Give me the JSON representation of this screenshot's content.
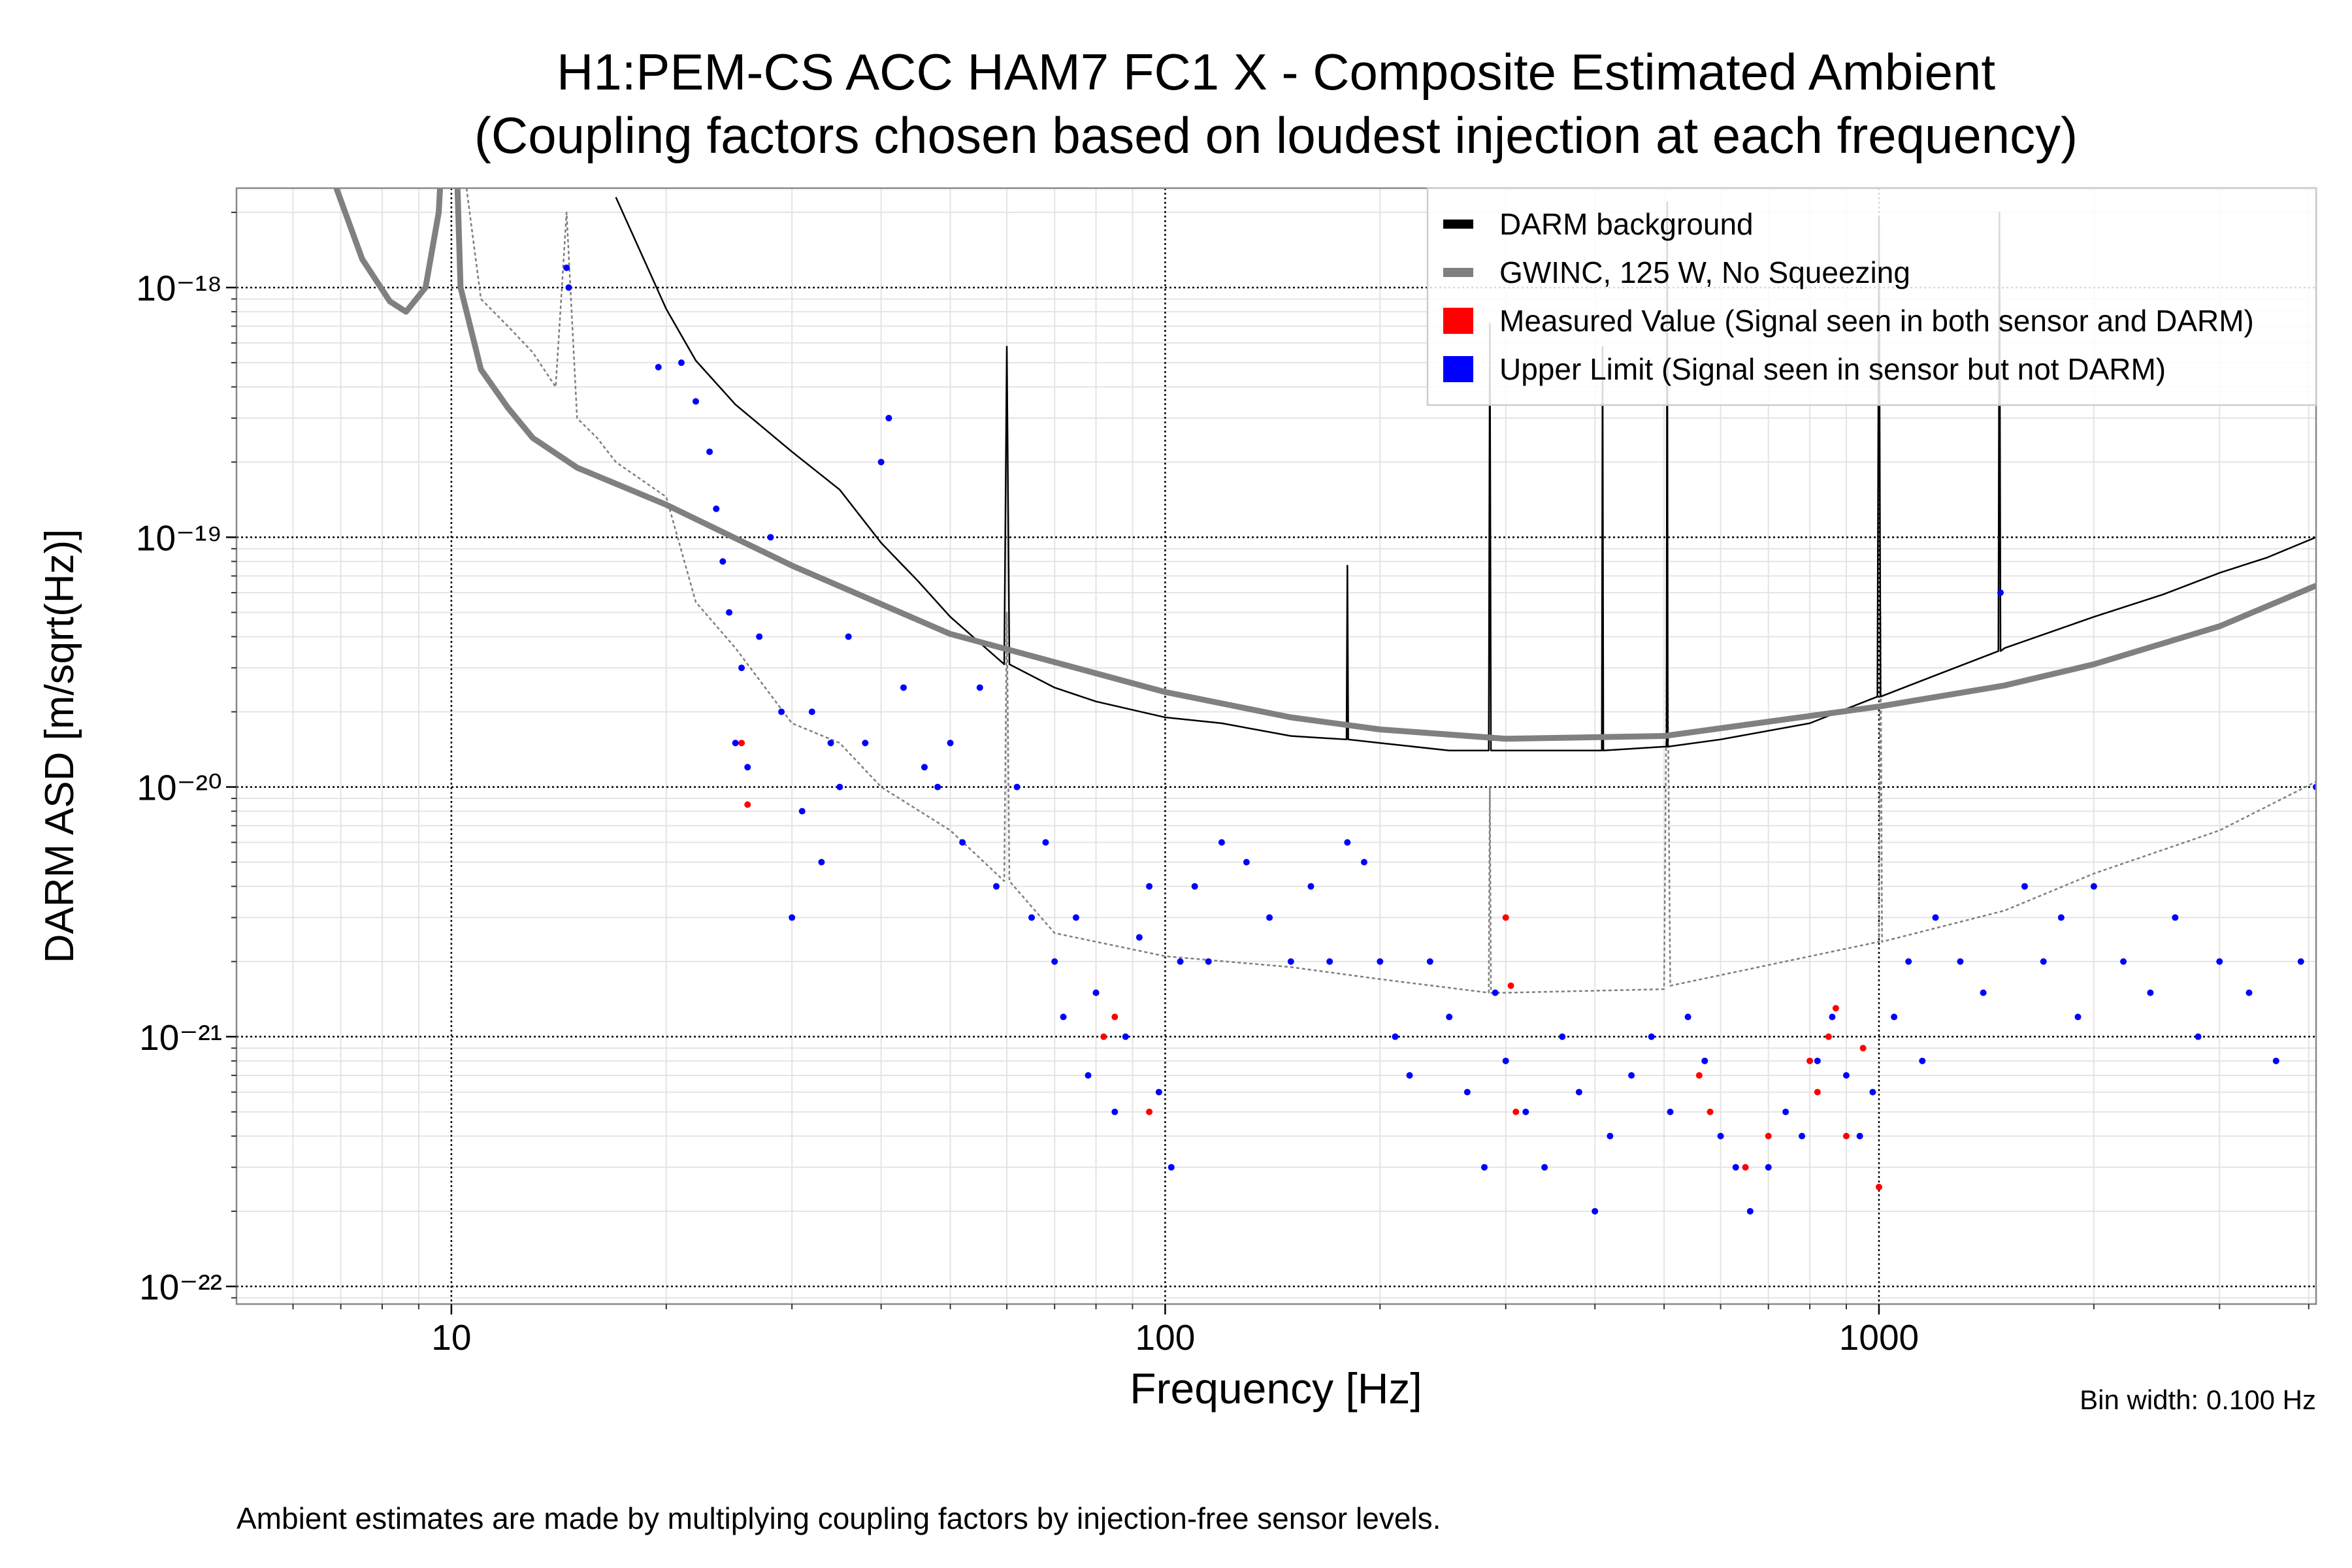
{
  "chart_data": {
    "type": "line",
    "title": "H1:PEM-CS ACC HAM7 FC1 X - Composite Estimated Ambient",
    "subtitle": "(Coupling factors chosen based on loudest injection at each frequency)",
    "x_label": "Frequency [Hz]",
    "y_label": "DARM ASD [m/sqrt(Hz)]",
    "bin_width_note": "Bin width: 0.100 Hz",
    "footnote": "Ambient estimates are made by multiplying coupling factors by injection-free sensor levels.",
    "xscale": "log",
    "yscale": "log",
    "xlim": [
      5,
      4096
    ],
    "ylim": [
      8.5e-23,
      2.5e-18
    ],
    "xticks": [
      10,
      100,
      1000
    ],
    "yticks": [
      {
        "value": 1e-22,
        "label": "10⁻²²"
      },
      {
        "value": 1e-21,
        "label": "10⁻²¹"
      },
      {
        "value": 1e-20,
        "label": "10⁻²⁰"
      },
      {
        "value": 1e-19,
        "label": "10⁻¹⁹"
      },
      {
        "value": 1e-18,
        "label": "10⁻¹⁸"
      }
    ],
    "grid": true,
    "legend": "upper right",
    "series": [
      {
        "type": "line",
        "style": "dashed",
        "color": "#7f7f7f",
        "x": [
          10.5,
          11,
          12,
          13,
          14,
          14.5,
          15,
          16,
          17,
          20,
          22,
          25,
          30,
          35,
          40,
          50,
          59.5,
          60,
          60.5,
          70,
          100,
          150,
          200,
          284,
          285,
          286,
          300,
          500,
          505,
          510,
          1000,
          1005,
          1010,
          1500,
          2000,
          3000,
          4096
        ],
        "values": [
          2.5e-18,
          9e-19,
          7e-19,
          5.5e-19,
          4e-19,
          2e-18,
          3e-19,
          2.5e-19,
          2e-19,
          1.45e-19,
          5.5e-20,
          3.6e-20,
          1.8e-20,
          1.5e-20,
          1e-20,
          6.7e-21,
          4.2e-21,
          5e-20,
          4.2e-21,
          2.6e-21,
          2.1e-21,
          1.9e-21,
          1.7e-21,
          1.5e-21,
          1e-20,
          1.5e-21,
          1.5e-21,
          1.55e-21,
          5e-20,
          1.6e-21,
          2.4e-21,
          5e-20,
          2.4e-21,
          3.2e-21,
          4.5e-21,
          6.7e-21,
          1.05e-20
        ]
      },
      {
        "type": "line",
        "name": "DARM background",
        "color": "#000000",
        "x": [
          17,
          20,
          22,
          25,
          30,
          35,
          40,
          45,
          50,
          59.5,
          60,
          60.5,
          70,
          80,
          100,
          120,
          150,
          179.5,
          180,
          180.5,
          200,
          250,
          284,
          285,
          286,
          300,
          400,
          409,
          410,
          411,
          500,
          504,
          505,
          506,
          600,
          800,
          995,
          1000,
          1005,
          1200,
          1470,
          1475,
          1480,
          1500,
          2000,
          2500,
          3000,
          3500,
          4096
        ],
        "values": [
          2.3e-18,
          8.2e-19,
          5.1e-19,
          3.4e-19,
          2.2e-19,
          1.55e-19,
          9.5e-20,
          6.7e-20,
          4.8e-20,
          3.1e-20,
          5.8e-19,
          3.1e-20,
          2.5e-20,
          2.2e-20,
          1.9e-20,
          1.8e-20,
          1.6e-20,
          1.55e-20,
          7.7e-20,
          1.55e-20,
          1.5e-20,
          1.4e-20,
          1.4e-20,
          7.2e-19,
          1.4e-20,
          1.4e-20,
          1.4e-20,
          1.4e-20,
          5.8e-19,
          1.4e-20,
          1.45e-20,
          1.45e-20,
          2.2e-18,
          1.45e-20,
          1.55e-20,
          1.8e-20,
          2.3e-20,
          1.9e-18,
          2.3e-20,
          2.8e-20,
          3.5e-20,
          2e-18,
          3.5e-20,
          3.6e-20,
          4.8e-20,
          5.9e-20,
          7.2e-20,
          8.3e-20,
          1e-19
        ]
      },
      {
        "type": "line",
        "style": "thick",
        "name": "GWINC, 125 W, No Squeezing",
        "color": "#808080",
        "x": [
          6.9,
          7.5,
          8.2,
          8.64,
          9.2,
          9.6,
          9.9,
          10.05,
          10.3,
          11,
          12,
          13,
          15,
          20,
          30,
          50,
          100,
          150,
          200,
          300,
          500,
          1000,
          1500,
          2000,
          3000,
          4096
        ],
        "values": [
          2.5e-18,
          1.3e-18,
          8.8e-19,
          8e-19,
          1e-18,
          2e-18,
          1e-17,
          1e-17,
          1e-18,
          4.7e-19,
          3.3e-19,
          2.5e-19,
          1.9e-19,
          1.35e-19,
          7.7e-20,
          4.1e-20,
          2.4e-20,
          1.9e-20,
          1.7e-20,
          1.56e-20,
          1.6e-20,
          2.1e-20,
          2.55e-20,
          3.1e-20,
          4.4e-20,
          6.4e-20
        ]
      },
      {
        "type": "scatter",
        "name": "Measured Value (Signal seen in both sensor and DARM)",
        "color": "#ff0000",
        "x": [
          25.5,
          26,
          80,
          82,
          85,
          95,
          300,
          305,
          310,
          560,
          580,
          650,
          700,
          800,
          820,
          850,
          870,
          900,
          950,
          1000
        ],
        "values": [
          1.5e-20,
          8.5e-21,
          1.5e-21,
          1e-21,
          1.2e-21,
          5e-22,
          3e-21,
          1.6e-21,
          5e-22,
          7e-22,
          5e-22,
          3e-22,
          4e-22,
          8e-22,
          6e-22,
          1e-21,
          1.3e-21,
          4e-22,
          9e-22,
          2.5e-22
        ]
      },
      {
        "type": "scatter",
        "name": "Upper Limit (Signal seen in sensor but not DARM)",
        "color": "#0000ff",
        "x": [
          14.5,
          14.6,
          19.5,
          21,
          22,
          23,
          23.5,
          24,
          24.5,
          25,
          25.5,
          26,
          27,
          28,
          29,
          30,
          31,
          32,
          33,
          34,
          35,
          36,
          38,
          40,
          41,
          43,
          46,
          48,
          50,
          52,
          55,
          58,
          62,
          65,
          68,
          70,
          72,
          75,
          78,
          80,
          85,
          88,
          92,
          95,
          98,
          102,
          105,
          110,
          115,
          120,
          130,
          140,
          150,
          160,
          170,
          180,
          190,
          200,
          210,
          220,
          235,
          250,
          265,
          280,
          290,
          300,
          320,
          340,
          360,
          380,
          400,
          420,
          450,
          480,
          510,
          540,
          570,
          600,
          630,
          660,
          700,
          740,
          780,
          820,
          860,
          900,
          940,
          980,
          1050,
          1100,
          1150,
          1200,
          1300,
          1400,
          1480,
          1600,
          1700,
          1800,
          1900,
          2000,
          2200,
          2400,
          2600,
          2800,
          3000,
          3300,
          3600,
          3900,
          4096
        ],
        "values": [
          1.2e-18,
          1e-18,
          4.8e-19,
          5e-19,
          3.5e-19,
          2.2e-19,
          1.3e-19,
          8e-20,
          5e-20,
          1.5e-20,
          3e-20,
          1.2e-20,
          4e-20,
          1e-19,
          2e-20,
          3e-21,
          8e-21,
          2e-20,
          5e-21,
          1.5e-20,
          1e-20,
          4e-20,
          1.5e-20,
          2e-19,
          3e-19,
          2.5e-20,
          1.2e-20,
          1e-20,
          1.5e-20,
          6e-21,
          2.5e-20,
          4e-21,
          1e-20,
          3e-21,
          6e-21,
          2e-21,
          1.2e-21,
          3e-21,
          7e-22,
          1.5e-21,
          5e-22,
          1e-21,
          2.5e-21,
          4e-21,
          6e-22,
          3e-22,
          2e-21,
          4e-21,
          2e-21,
          6e-21,
          5e-21,
          3e-21,
          2e-21,
          4e-21,
          2e-21,
          6e-21,
          5e-21,
          2e-21,
          1e-21,
          7e-22,
          2e-21,
          1.2e-21,
          6e-22,
          3e-22,
          1.5e-21,
          8e-22,
          5e-22,
          3e-22,
          1e-21,
          6e-22,
          2e-22,
          4e-22,
          7e-22,
          1e-21,
          5e-22,
          1.2e-21,
          8e-22,
          4e-22,
          3e-22,
          2e-22,
          3e-22,
          5e-22,
          4e-22,
          8e-22,
          1.2e-21,
          7e-22,
          4e-22,
          6e-22,
          1.2e-21,
          2e-21,
          8e-22,
          3e-21,
          2e-21,
          1.5e-21,
          6e-20,
          4e-21,
          2e-21,
          3e-21,
          1.2e-21,
          4e-21,
          2e-21,
          1.5e-21,
          3e-21,
          1e-21,
          2e-21,
          1.5e-21,
          8e-22,
          2e-21,
          1e-20
        ]
      }
    ]
  }
}
